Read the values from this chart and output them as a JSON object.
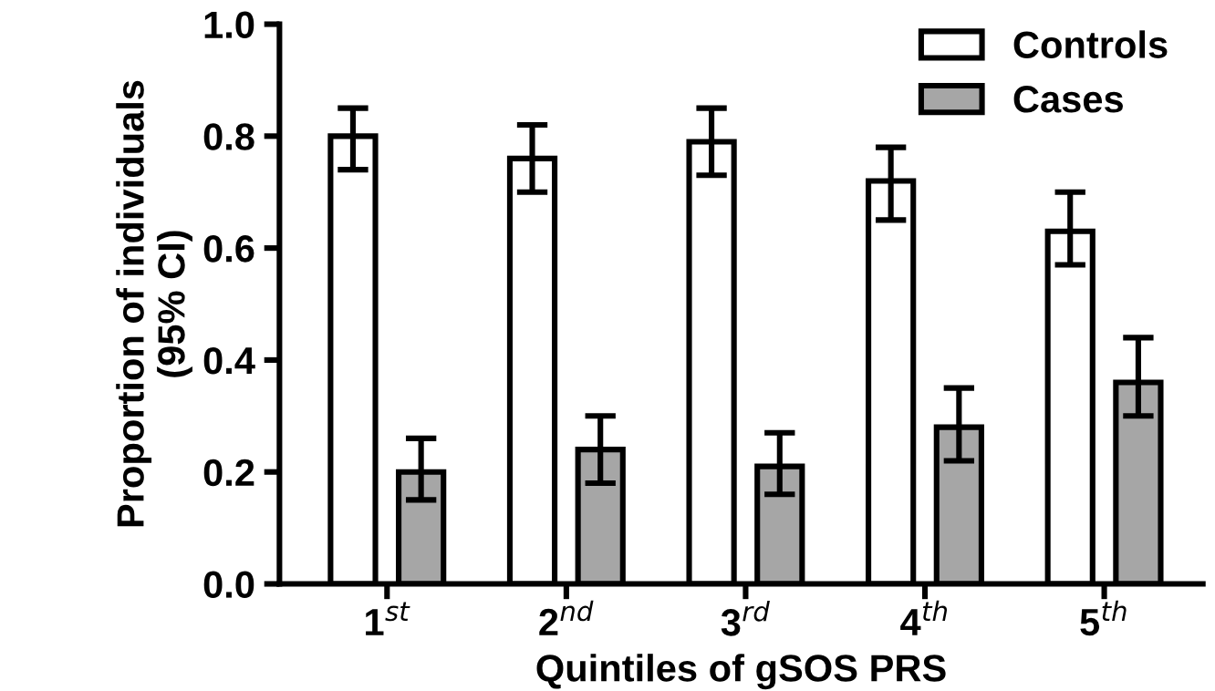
{
  "chart_data": {
    "type": "bar",
    "xlabel": "Quintiles of gSOS PRS",
    "ylabel": "Proportion of individuals\n(95% CI)",
    "categories": [
      "1$^{st}$",
      "2$^{nd}$",
      "3$^{rd}$",
      "4$^{th}$",
      "5$^{th}$"
    ],
    "series": [
      {
        "name": "Controls",
        "color": "#ffffff",
        "values": [
          0.8,
          0.76,
          0.79,
          0.72,
          0.63
        ],
        "errors": [
          [
            0.74,
            0.85
          ],
          [
            0.7,
            0.82
          ],
          [
            0.73,
            0.85
          ],
          [
            0.65,
            0.78
          ],
          [
            0.57,
            0.7
          ]
        ]
      },
      {
        "name": "Cases",
        "color": "#a6a6a6",
        "values": [
          0.2,
          0.24,
          0.21,
          0.28,
          0.36
        ],
        "errors": [
          [
            0.15,
            0.26
          ],
          [
            0.18,
            0.3
          ],
          [
            0.16,
            0.27
          ],
          [
            0.22,
            0.35
          ],
          [
            0.3,
            0.44
          ]
        ]
      }
    ],
    "ylim": [
      0.0,
      1.0
    ],
    "yticks": [
      {
        "value": 0.0,
        "label": "0.0"
      },
      {
        "value": 0.2,
        "label": "0.2"
      },
      {
        "value": 0.4,
        "label": "0.4"
      },
      {
        "value": 0.6,
        "label": "0.6"
      },
      {
        "value": 0.8,
        "label": "0.8"
      },
      {
        "value": 1.0,
        "label": "1.0"
      }
    ],
    "grid": false,
    "legend": "top right"
  }
}
